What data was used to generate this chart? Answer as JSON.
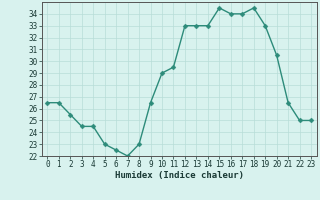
{
  "x": [
    0,
    1,
    2,
    3,
    4,
    5,
    6,
    7,
    8,
    9,
    10,
    11,
    12,
    13,
    14,
    15,
    16,
    17,
    18,
    19,
    20,
    21,
    22,
    23
  ],
  "y": [
    26.5,
    26.5,
    25.5,
    24.5,
    24.5,
    23.0,
    22.5,
    22.0,
    23.0,
    26.5,
    29.0,
    29.5,
    33.0,
    33.0,
    33.0,
    34.5,
    34.0,
    34.0,
    34.5,
    33.0,
    30.5,
    26.5,
    25.0,
    25.0
  ],
  "line_color": "#2d8b7a",
  "marker_color": "#2d8b7a",
  "bg_color": "#d8f2ee",
  "grid_color": "#b8ddd8",
  "xlabel": "Humidex (Indice chaleur)",
  "ylim": [
    22,
    35
  ],
  "xlim": [
    -0.5,
    23.5
  ],
  "yticks": [
    22,
    23,
    24,
    25,
    26,
    27,
    28,
    29,
    30,
    31,
    32,
    33,
    34
  ],
  "xticks": [
    0,
    1,
    2,
    3,
    4,
    5,
    6,
    7,
    8,
    9,
    10,
    11,
    12,
    13,
    14,
    15,
    16,
    17,
    18,
    19,
    20,
    21,
    22,
    23
  ],
  "line_width": 1.0,
  "marker_size": 2.5,
  "tick_fontsize": 5.5,
  "xlabel_fontsize": 6.5
}
